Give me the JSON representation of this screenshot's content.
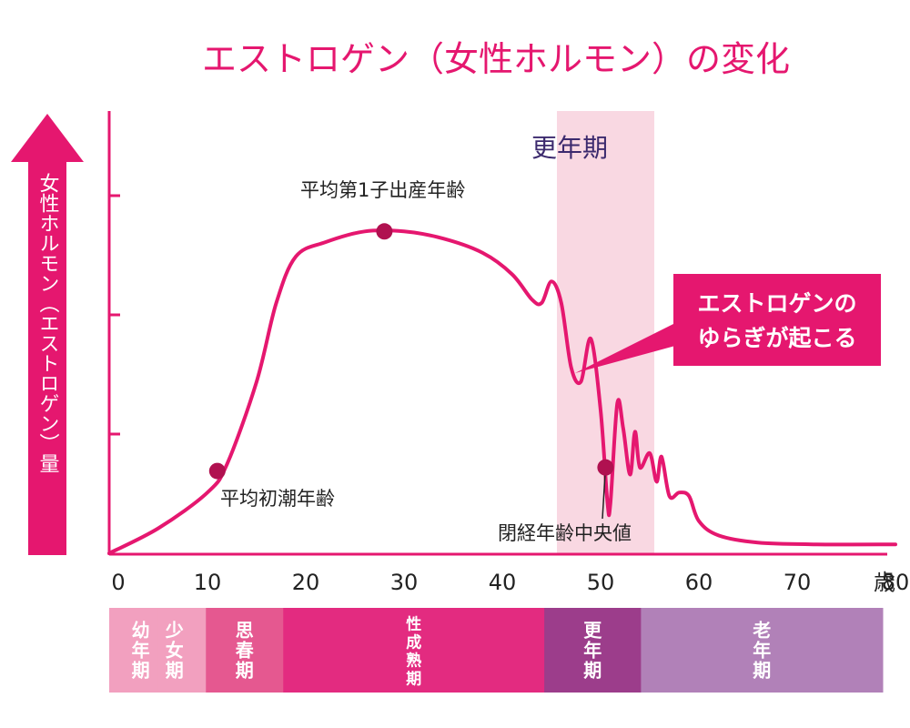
{
  "chart_data": {
    "type": "line",
    "title": "エストロゲン（女性ホルモン）の変化",
    "ylabel": "女性ホルモン（エストロゲン）量",
    "x_unit": "歳",
    "x_ticks": [
      0,
      10,
      20,
      30,
      40,
      50,
      60,
      70,
      80
    ],
    "xlim": [
      0,
      80
    ],
    "y_scale": "relative (no numeric ticks)",
    "ylim": [
      0,
      100
    ],
    "y_tick_marks": 3,
    "grid": false,
    "highlight_band": {
      "label": "更年期",
      "x_range": [
        45,
        55
      ]
    },
    "series": [
      {
        "points": [
          [
            0,
            0
          ],
          [
            5,
            7
          ],
          [
            10,
            17
          ],
          [
            12,
            25
          ],
          [
            15,
            48
          ],
          [
            17,
            70
          ],
          [
            19,
            83
          ],
          [
            22,
            87
          ],
          [
            26,
            90
          ],
          [
            30,
            90
          ],
          [
            34,
            88
          ],
          [
            38,
            84
          ],
          [
            41,
            78
          ],
          [
            43,
            71
          ],
          [
            44,
            70
          ],
          [
            45,
            76
          ],
          [
            46,
            70
          ],
          [
            47,
            52
          ],
          [
            48,
            48
          ],
          [
            49,
            60
          ],
          [
            50,
            40
          ],
          [
            50.7,
            14
          ],
          [
            51,
            14
          ],
          [
            51.7,
            42
          ],
          [
            52.3,
            35
          ],
          [
            53,
            22
          ],
          [
            53.5,
            34
          ],
          [
            54,
            24
          ],
          [
            55,
            28
          ],
          [
            55.7,
            20
          ],
          [
            56.2,
            27
          ],
          [
            57,
            16
          ],
          [
            58,
            17
          ],
          [
            59,
            16
          ],
          [
            60,
            9
          ],
          [
            62,
            5
          ],
          [
            66,
            3
          ],
          [
            72,
            2.5
          ],
          [
            80,
            2.5
          ]
        ]
      }
    ],
    "markers": [
      {
        "label": "平均初潮年齢",
        "x": 11,
        "y": 23
      },
      {
        "label": "平均第1子出産年齢",
        "x": 28,
        "y": 90
      },
      {
        "label": "閉経年齢中央値",
        "x": 50.5,
        "y": 24
      }
    ],
    "callout": "エストロゲンの\nゆらぎが起こる",
    "life_stages": [
      {
        "label": "幼年期",
        "range": [
          0,
          5
        ],
        "color": "#f2a0bf"
      },
      {
        "label": "少女期",
        "range": [
          5,
          10
        ],
        "color": "#f2a0bf"
      },
      {
        "label": "思春期",
        "range": [
          10,
          18
        ],
        "color": "#e55890"
      },
      {
        "label": "性成熟期",
        "range": [
          18,
          45
        ],
        "color": "#e32b80"
      },
      {
        "label": "更年期",
        "range": [
          45,
          55
        ],
        "color": "#9c3d8b"
      },
      {
        "label": "老年期",
        "range": [
          55,
          80
        ],
        "color": "#b181b8"
      }
    ],
    "colors": {
      "accent": "#e5176f",
      "marker": "#b01150",
      "band": "#f9d8e2",
      "menopause_label": "#3c2a6e",
      "tick_text": "#222222"
    }
  }
}
